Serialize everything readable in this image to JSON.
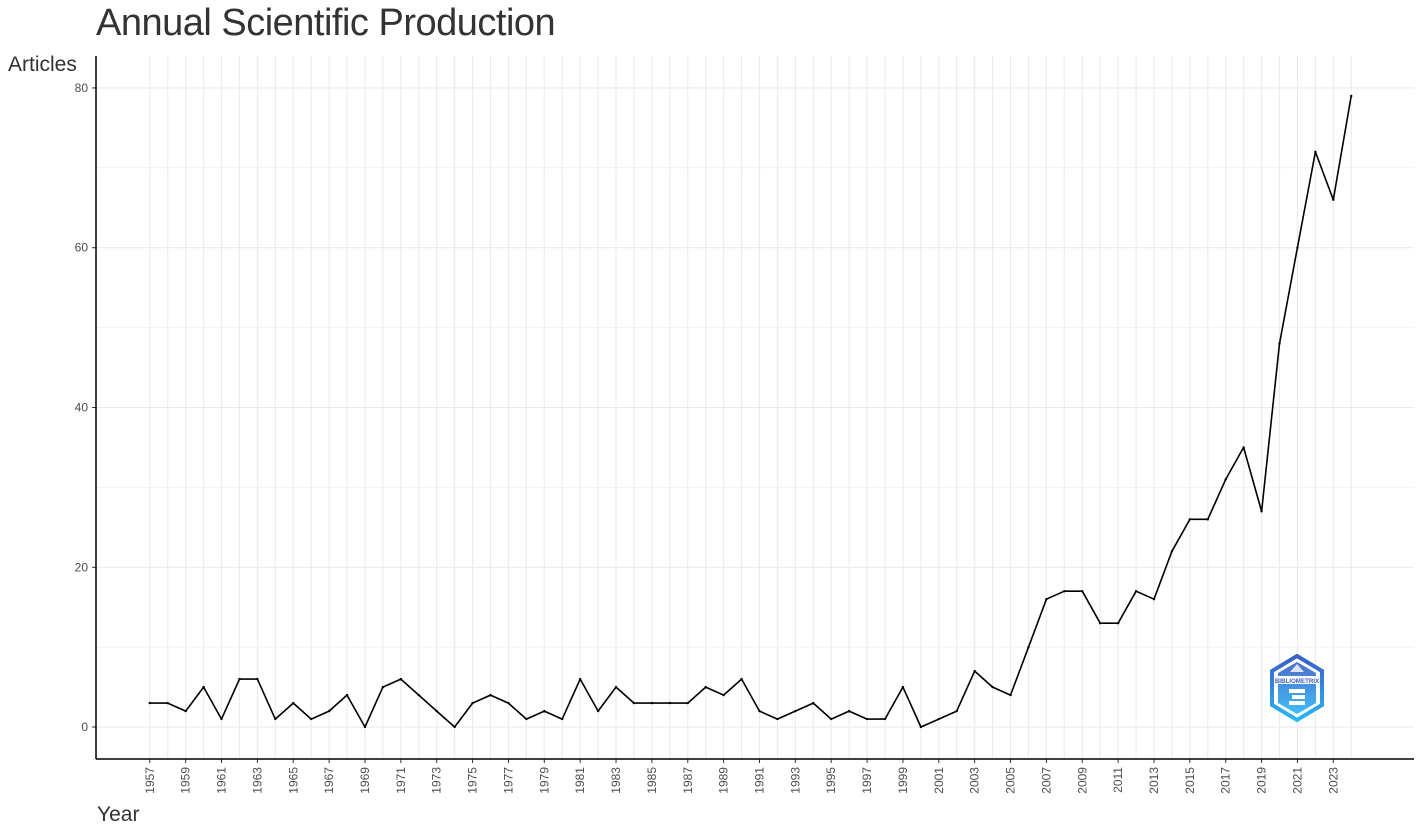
{
  "chart_data": {
    "type": "line",
    "title": "Annual Scientific Production",
    "xlabel": "Year",
    "ylabel": "Articles",
    "x": [
      1957,
      1958,
      1959,
      1960,
      1961,
      1962,
      1963,
      1964,
      1965,
      1966,
      1967,
      1968,
      1969,
      1970,
      1971,
      1972,
      1973,
      1974,
      1975,
      1976,
      1977,
      1978,
      1979,
      1980,
      1981,
      1982,
      1983,
      1984,
      1985,
      1986,
      1987,
      1988,
      1989,
      1990,
      1991,
      1992,
      1993,
      1994,
      1995,
      1996,
      1997,
      1998,
      1999,
      2000,
      2001,
      2002,
      2003,
      2004,
      2005,
      2006,
      2007,
      2008,
      2009,
      2010,
      2011,
      2012,
      2013,
      2014,
      2015,
      2016,
      2017,
      2018,
      2019,
      2020,
      2021,
      2022,
      2023,
      2024
    ],
    "y": [
      3,
      3,
      2,
      5,
      1,
      6,
      6,
      1,
      3,
      1,
      2,
      4,
      0,
      5,
      6,
      4,
      2,
      0,
      3,
      4,
      3,
      1,
      2,
      1,
      6,
      2,
      5,
      3,
      3,
      3,
      3,
      5,
      4,
      6,
      2,
      1,
      2,
      3,
      1,
      2,
      1,
      1,
      5,
      0,
      1,
      2,
      7,
      5,
      4,
      10,
      16,
      17,
      17,
      13,
      13,
      17,
      16,
      22,
      26,
      26,
      31,
      35,
      27,
      48,
      60,
      72,
      66,
      79
    ],
    "x_ticks": [
      "1957",
      "1959",
      "1961",
      "1963",
      "1965",
      "1967",
      "1969",
      "1971",
      "1973",
      "1975",
      "1977",
      "1979",
      "1981",
      "1983",
      "1985",
      "1987",
      "1989",
      "1991",
      "1993",
      "1995",
      "1997",
      "1999",
      "2001",
      "2003",
      "2005",
      "2007",
      "2009",
      "2011",
      "2013",
      "2015",
      "2017",
      "2019",
      "2021",
      "2023"
    ],
    "y_ticks": [
      "0",
      "20",
      "40",
      "60",
      "80"
    ],
    "xlim": [
      1954,
      2027.5
    ],
    "ylim": [
      -4,
      84
    ],
    "grid": true,
    "line_color": "#000000",
    "grid_color": "#ebebeb"
  },
  "logo": {
    "text": "BIBLIOMETRIX",
    "colors": [
      "#3a5fc4",
      "#29b6f6"
    ]
  }
}
